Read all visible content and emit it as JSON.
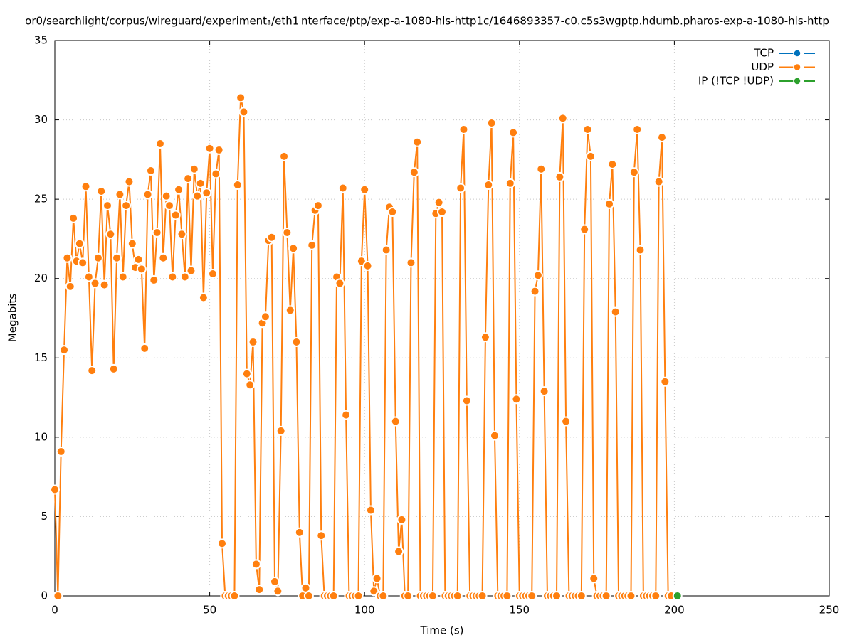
{
  "chart_data": {
    "type": "line",
    "title": "or0/searchlight/corpus/wireguard/experiment₃/eth1ᵢnterface/ptp/exp-a-1080-hls-http1c/1646893357-c0.c5s3wgptp.hdumb.pharos-exp-a-1080-hls-http",
    "x_label": "Time (s)",
    "y_label": "Megabits",
    "xlim": [
      0,
      250
    ],
    "xticks": [
      0,
      50,
      100,
      150,
      200,
      250
    ],
    "ylim": [
      0,
      35
    ],
    "yticks": [
      0,
      5,
      10,
      15,
      20,
      25,
      30,
      35
    ],
    "grid": true,
    "legend": "top-right",
    "series": [
      {
        "name": "TCP",
        "color": "#0072bd",
        "x": [],
        "values": []
      },
      {
        "name": "UDP",
        "color": "#ff7f0e",
        "x": [
          0,
          1,
          2,
          3,
          4,
          5,
          6,
          7,
          8,
          9,
          10,
          11,
          12,
          13,
          14,
          15,
          16,
          17,
          18,
          19,
          20,
          21,
          22,
          23,
          24,
          25,
          26,
          27,
          28,
          29,
          30,
          31,
          32,
          33,
          34,
          35,
          36,
          37,
          38,
          39,
          40,
          41,
          42,
          43,
          44,
          45,
          46,
          47,
          48,
          49,
          50,
          51,
          52,
          53,
          54,
          55,
          56,
          57,
          58,
          59,
          60,
          61,
          62,
          63,
          64,
          65,
          66,
          67,
          68,
          69,
          70,
          71,
          72,
          73,
          74,
          75,
          76,
          77,
          78,
          79,
          80,
          81,
          82,
          83,
          84,
          85,
          86,
          87,
          88,
          89,
          90,
          91,
          92,
          93,
          94,
          95,
          96,
          97,
          98,
          99,
          100,
          101,
          102,
          103,
          104,
          105,
          106,
          107,
          108,
          109,
          110,
          111,
          112,
          113,
          114,
          115,
          116,
          117,
          118,
          119,
          120,
          121,
          122,
          123,
          124,
          125,
          126,
          127,
          128,
          129,
          130,
          131,
          132,
          133,
          134,
          135,
          136,
          137,
          138,
          139,
          140,
          141,
          142,
          143,
          144,
          145,
          146,
          147,
          148,
          149,
          150,
          151,
          152,
          153,
          154,
          155,
          156,
          157,
          158,
          159,
          160,
          161,
          162,
          163,
          164,
          165,
          166,
          167,
          168,
          169,
          170,
          171,
          172,
          173,
          174,
          175,
          176,
          177,
          178,
          179,
          180,
          181,
          182,
          183,
          184,
          185,
          186,
          187,
          188,
          189,
          190,
          191,
          192,
          193,
          194,
          195,
          196,
          197,
          198,
          199
        ],
        "values": [
          6.7,
          0,
          9.1,
          15.5,
          21.3,
          19.5,
          23.8,
          21.1,
          22.2,
          21.0,
          25.8,
          20.1,
          14.2,
          19.7,
          21.3,
          25.5,
          19.6,
          24.6,
          22.8,
          14.3,
          21.3,
          25.3,
          20.1,
          24.6,
          26.1,
          22.2,
          20.7,
          21.2,
          20.6,
          15.6,
          25.3,
          26.8,
          19.9,
          22.9,
          28.5,
          21.3,
          25.2,
          24.6,
          20.1,
          24.0,
          25.6,
          22.8,
          20.1,
          26.3,
          20.5,
          26.9,
          25.2,
          26.0,
          18.8,
          25.4,
          28.2,
          20.3,
          26.6,
          28.1,
          3.3,
          0,
          0,
          0,
          0,
          25.9,
          31.4,
          30.5,
          14.0,
          13.3,
          16.0,
          2.0,
          0.4,
          17.2,
          17.6,
          22.4,
          22.6,
          0.9,
          0.3,
          10.4,
          27.7,
          22.9,
          18.0,
          21.9,
          16.0,
          4.0,
          0,
          0.5,
          0,
          22.1,
          24.3,
          24.6,
          3.8,
          0,
          0,
          0,
          0,
          20.1,
          19.7,
          25.7,
          11.4,
          0,
          0,
          0,
          0,
          21.1,
          25.6,
          20.8,
          5.4,
          0.3,
          1.1,
          0,
          0,
          21.8,
          24.5,
          24.2,
          11.0,
          2.8,
          4.8,
          0,
          0,
          21.0,
          26.7,
          28.6,
          0,
          0,
          0,
          0,
          0,
          24.1,
          24.8,
          24.2,
          0,
          0,
          0,
          0,
          0,
          25.7,
          29.4,
          12.3,
          0,
          0,
          0,
          0,
          0,
          16.3,
          25.9,
          29.8,
          10.1,
          0,
          0,
          0,
          0,
          26.0,
          29.2,
          12.4,
          0,
          0,
          0,
          0,
          0,
          19.2,
          20.2,
          26.9,
          12.9,
          0,
          0,
          0,
          0,
          26.4,
          30.1,
          11.0,
          0,
          0,
          0,
          0,
          0,
          23.1,
          29.4,
          27.7,
          1.1,
          0,
          0,
          0,
          0,
          24.7,
          27.2,
          17.9,
          0,
          0,
          0,
          0,
          0,
          26.7,
          29.4,
          21.8,
          0,
          0,
          0,
          0,
          0,
          26.1,
          28.9,
          13.5,
          0,
          0
        ]
      },
      {
        "name": "IP (!TCP  !UDP)",
        "color": "#2ca02c",
        "x": [
          201
        ],
        "values": [
          0
        ]
      }
    ]
  }
}
